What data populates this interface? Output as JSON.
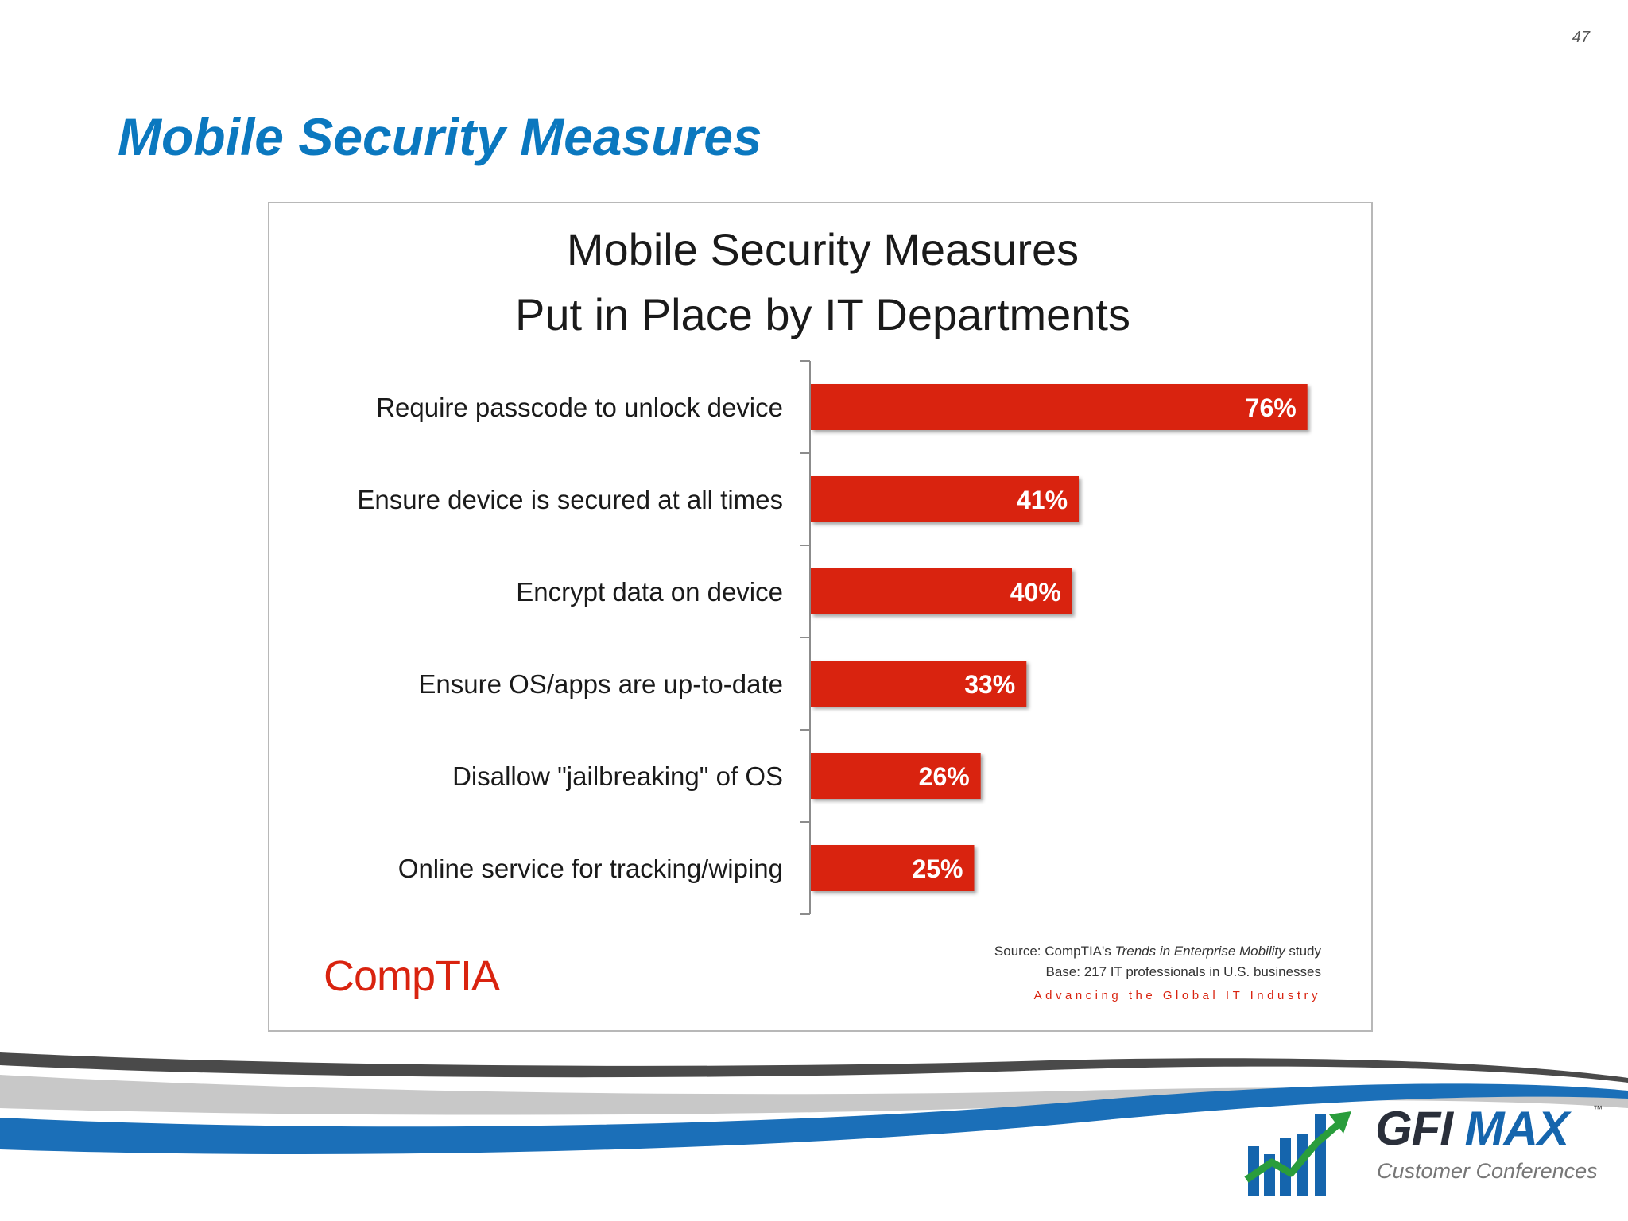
{
  "slide": {
    "page_number": "47",
    "title": "Mobile Security Measures"
  },
  "chart_data": {
    "type": "bar",
    "orientation": "horizontal",
    "title_lines": [
      "Mobile Security Measures",
      "Put in Place by IT Departments"
    ],
    "categories": [
      "Require passcode to unlock device",
      "Ensure device is secured at all times",
      "Encrypt data on device",
      "Ensure OS/apps are up-to-date",
      "Disallow \"jailbreaking\" of OS",
      "Online service for tracking/wiping"
    ],
    "values": [
      76,
      41,
      40,
      33,
      26,
      25
    ],
    "value_labels": [
      "76%",
      "41%",
      "40%",
      "33%",
      "26%",
      "25%"
    ],
    "xlim": [
      0,
      80
    ],
    "grid": false,
    "bar_color": "#d9230f",
    "source": {
      "prefix": "Source: CompTIA's ",
      "study_name": "Trends in Enterprise Mobility",
      "suffix": " study",
      "base": "Base: 217 IT professionals in U.S. businesses"
    },
    "brand": {
      "logo_text": "CompTIA",
      "tagline": "Advancing the Global IT Industry",
      "color": "#d9230f"
    }
  },
  "footer": {
    "logo": {
      "gfi": "GFI",
      "max": "MAX",
      "tm": "™",
      "subtitle": "Customer Conferences",
      "colors": {
        "dark": "#2a2f3a",
        "blue": "#1565ad",
        "green": "#2a9d3c"
      }
    },
    "swoosh_colors": {
      "dark": "#4a4a4a",
      "light": "#c8c8c8",
      "blue": "#1b6fb8"
    }
  }
}
